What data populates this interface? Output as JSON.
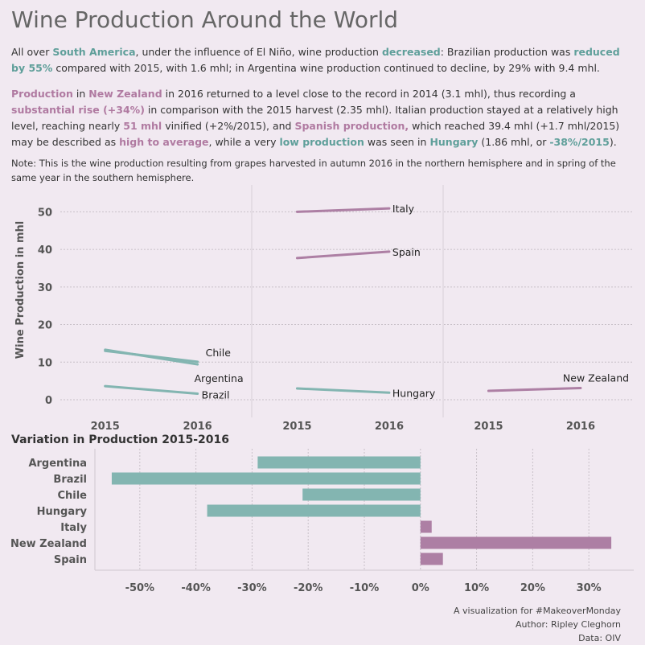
{
  "title": "Wine Production Around the World",
  "paragraph1": [
    {
      "t": "All over ",
      "s": ""
    },
    {
      "t": "South America",
      "s": "teal"
    },
    {
      "t": ", under the influence of El Niño, wine production ",
      "s": ""
    },
    {
      "t": "decreased",
      "s": "teal"
    },
    {
      "t": ": Brazilian production was ",
      "s": ""
    },
    {
      "t": "reduced by 55%",
      "s": "teal"
    },
    {
      "t": " compared with 2015, with 1.6 mhl; in Argentina wine production continued to decline, by 29% with 9.4 mhl.",
      "s": ""
    }
  ],
  "paragraph2": [
    {
      "t": "Production",
      "s": "mauve"
    },
    {
      "t": " in ",
      "s": ""
    },
    {
      "t": "New Zealand",
      "s": "mauve"
    },
    {
      "t": " in 2016 returned to a level close to the record in 2014 (3.1 mhl), thus recording a ",
      "s": ""
    },
    {
      "t": "substantial rise (+34%)",
      "s": "mauve"
    },
    {
      "t": " in comparison with the 2015 harvest (2.35 mhl). Italian production stayed at a relatively high level, reaching nearly ",
      "s": ""
    },
    {
      "t": "51 mhl",
      "s": "mauve"
    },
    {
      "t": " vinified (+2%/2015), and ",
      "s": ""
    },
    {
      "t": "Spanish production,",
      "s": "mauve"
    },
    {
      "t": " which reached 39.4 mhl (+1.7 mhl/2015) may be described as ",
      "s": ""
    },
    {
      "t": "high to average",
      "s": "mauve"
    },
    {
      "t": ", while a very ",
      "s": ""
    },
    {
      "t": "low production",
      "s": "teal"
    },
    {
      "t": " was seen in ",
      "s": ""
    },
    {
      "t": "Hungary",
      "s": "teal"
    },
    {
      "t": " (1.86 mhl, or ",
      "s": ""
    },
    {
      "t": "-38%/2015",
      "s": "teal"
    },
    {
      "t": ").",
      "s": ""
    }
  ],
  "note": "Note: This is the wine production resulting from grapes harvested in autumn 2016 in the northern hemisphere and in spring of the same year in the southern hemisphere.",
  "colors": {
    "decrease": "#83b5b1",
    "increase": "#ad7fa4",
    "grid": "#c8c0c8",
    "axis_text": "#555555"
  },
  "chart_data": [
    {
      "type": "line",
      "ylabel": "Wine Production in mhl",
      "x": [
        "2015",
        "2016"
      ],
      "yticks": [
        0,
        10,
        20,
        30,
        40,
        50
      ],
      "ylim": [
        0,
        55
      ],
      "panels": [
        {
          "series": [
            {
              "name": "Chile",
              "values": [
                13.0,
                10.1
              ],
              "color": "decrease"
            },
            {
              "name": "Argentina",
              "values": [
                13.3,
                9.4
              ],
              "color": "decrease"
            },
            {
              "name": "Brazil",
              "values": [
                3.6,
                1.6
              ],
              "color": "decrease"
            }
          ]
        },
        {
          "series": [
            {
              "name": "Italy",
              "values": [
                50.0,
                50.9
              ],
              "color": "increase"
            },
            {
              "name": "Spain",
              "values": [
                37.7,
                39.4
              ],
              "color": "increase"
            },
            {
              "name": "Hungary",
              "values": [
                3.0,
                1.86
              ],
              "color": "decrease"
            }
          ]
        },
        {
          "series": [
            {
              "name": "New Zealand",
              "values": [
                2.35,
                3.1
              ],
              "color": "increase"
            }
          ]
        }
      ]
    },
    {
      "type": "bar",
      "title": "Variation in Production 2015-2016",
      "categories": [
        "Argentina",
        "Brazil",
        "Chile",
        "Hungary",
        "Italy",
        "New Zealand",
        "Spain"
      ],
      "values": [
        -29,
        -55,
        -21,
        -38,
        2,
        34,
        4
      ],
      "xticks": [
        -50,
        -40,
        -30,
        -20,
        -10,
        0,
        10,
        20,
        30
      ],
      "xlim": [
        -58,
        38
      ]
    }
  ],
  "credits": [
    "A visualization for #MakeoverMonday",
    "Author:  Ripley Cleghorn",
    "Data: OIV"
  ]
}
